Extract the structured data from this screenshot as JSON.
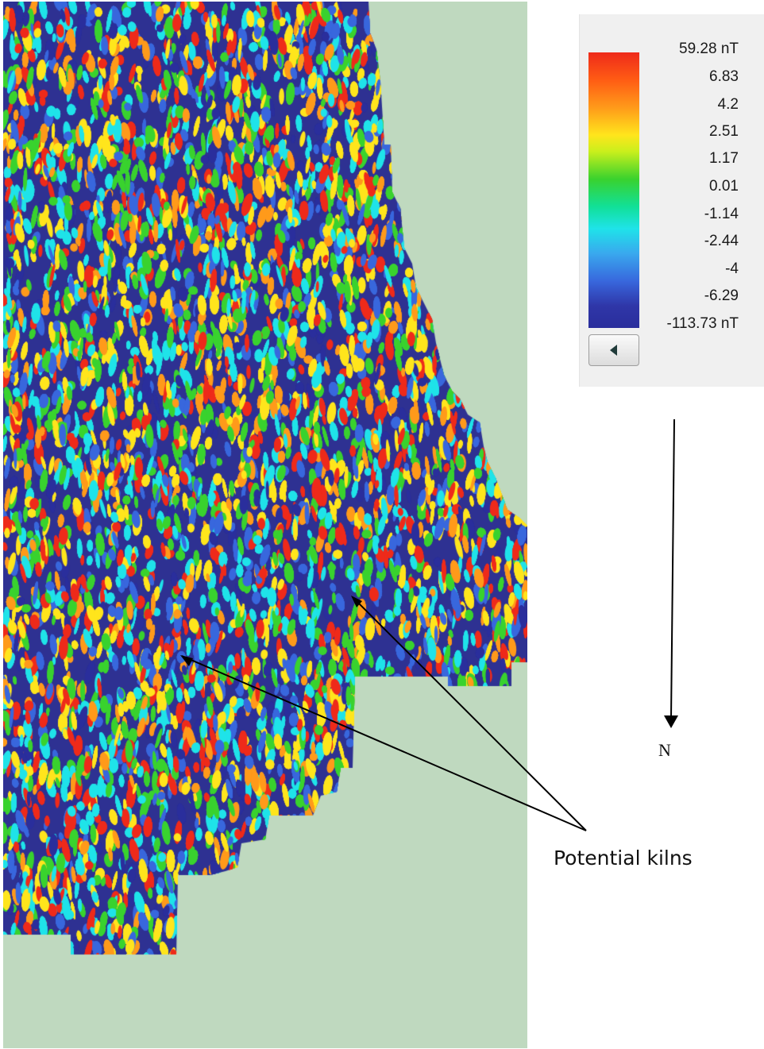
{
  "legend": {
    "scale_labels": [
      "59.28 nT",
      "6.83",
      "4.2",
      "2.51",
      "1.17",
      "0.01",
      "-1.14",
      "-2.44",
      "-4",
      "-6.29",
      "-113.73 nT"
    ],
    "colors": [
      "#ee2a1a",
      "#ff9a1a",
      "#ffe51c",
      "#39d22e",
      "#1fe3e9",
      "#3867dd",
      "#2a2e9c"
    ]
  },
  "north_arrow": {
    "label": "N"
  },
  "annotation": {
    "label": "Potential kilns",
    "targets": 2
  },
  "map": {
    "background": "#bfd9bf",
    "no_data_color": "#2e3192"
  }
}
